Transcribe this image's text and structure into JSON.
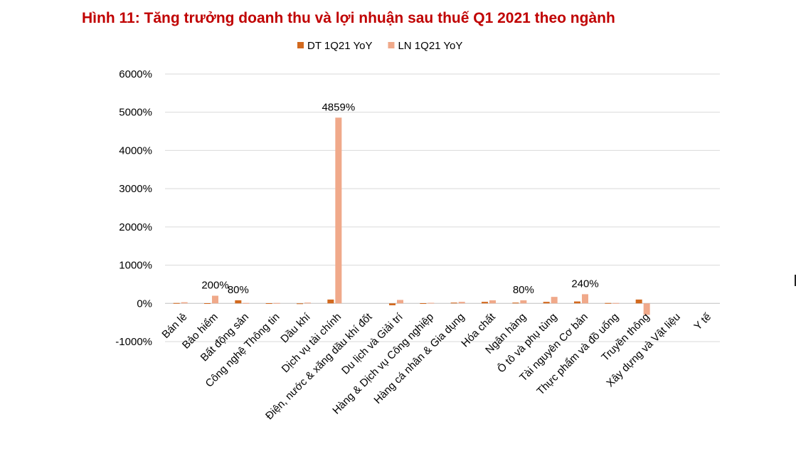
{
  "title": "Hình 11: Tăng trưởng doanh thu và lợi nhuận sau thuế Q1 2021 theo ngành",
  "colors": {
    "title": "#c00000",
    "dt": "#d2691e",
    "ln": "#f0a98a",
    "grid": "#d9d9d9"
  },
  "chart_data": {
    "type": "bar",
    "title": "Hình 11: Tăng trưởng doanh thu và lợi nhuận sau thuế Q1 2021 theo ngành",
    "xlabel": "",
    "ylabel": "",
    "ylim": [
      -1000,
      6000
    ],
    "yticks": [
      -1000,
      0,
      1000,
      2000,
      3000,
      4000,
      5000,
      6000
    ],
    "ytick_labels": [
      "-1000%",
      "0%",
      "1000%",
      "2000%",
      "3000%",
      "4000%",
      "5000%",
      "6000%"
    ],
    "grid": true,
    "legend_position": "top-center",
    "categories": [
      "Bán lẻ",
      "Bảo hiểm",
      "Bất động sản",
      "Công nghệ Thông tin",
      "Dầu khí",
      "Dịch vụ tài chính",
      "Điện, nước & xăng dầu khí đốt",
      "Du lịch và Giải trí",
      "Hàng & Dịch vụ Công nghiệp",
      "Hàng cá nhân & Gia dụng",
      "Hóa chất",
      "Ngân hàng",
      "Ô tô và phụ tùng",
      "Tài nguyên Cơ bản",
      "Thực phẩm và đồ uống",
      "Truyền thông",
      "Xây dựng và Vật liệu",
      "Y tế"
    ],
    "series": [
      {
        "name": "DT 1Q21 YoY",
        "values": [
          10,
          5,
          80,
          5,
          -5,
          100,
          0,
          -50,
          5,
          20,
          40,
          20,
          40,
          50,
          10,
          100,
          0,
          0
        ]
      },
      {
        "name": "LN 1Q21 YoY",
        "values": [
          30,
          200,
          10,
          10,
          20,
          4859,
          0,
          90,
          15,
          40,
          80,
          80,
          170,
          240,
          10,
          -300,
          0,
          0
        ]
      }
    ],
    "annotations": [
      {
        "category": "Bảo hiểm",
        "series": "LN 1Q21 YoY",
        "text": "200%"
      },
      {
        "category": "Bất động sản",
        "series": "DT 1Q21 YoY",
        "text": "80%"
      },
      {
        "category": "Dịch vụ tài chính",
        "series": "LN 1Q21 YoY",
        "text": "4859%"
      },
      {
        "category": "Ngân hàng",
        "series": "LN 1Q21 YoY",
        "text": "80%"
      },
      {
        "category": "Tài nguyên Cơ bản",
        "series": "LN 1Q21 YoY",
        "text": "240%"
      }
    ]
  }
}
